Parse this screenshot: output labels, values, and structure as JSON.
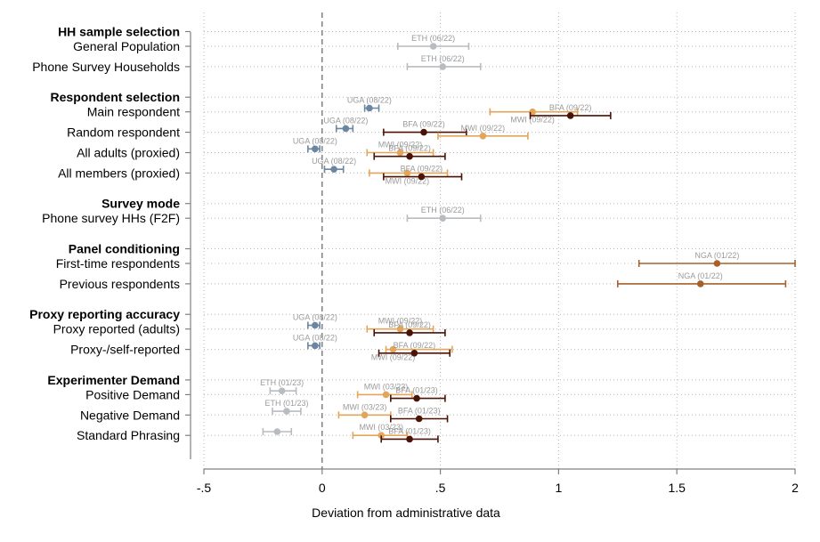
{
  "chart_data": {
    "type": "scatter",
    "subtype": "coefficient-plot-with-ci",
    "title": "",
    "xlabel": "Deviation from administrative data",
    "ylabel": "",
    "xlim": [
      -0.5,
      2
    ],
    "x_ticks": [
      {
        "value": -0.5,
        "label": "-.5"
      },
      {
        "value": 0,
        "label": "0"
      },
      {
        "value": 0.5,
        "label": ".5"
      },
      {
        "value": 1,
        "label": "1"
      },
      {
        "value": 1.5,
        "label": "1.5"
      },
      {
        "value": 2,
        "label": "2"
      }
    ],
    "reference_line": 0,
    "grid": true,
    "colors": {
      "ETH (06/22)": "#b8bcc0",
      "ETH (01/23)": "#b8bcc0",
      "UGA (08/22)": "#6b86a0",
      "BFA (09/22)": "#4a1306",
      "BFA (01/23)": "#4a1306",
      "MWI (09/22)": "#e3a55a",
      "MWI (03/23)": "#e3a55a",
      "NGA (01/22)": "#a8602a"
    },
    "sections": [
      {
        "title": "HH sample selection",
        "rows": [
          {
            "label": "General Population",
            "points": [
              {
                "series": "ETH (06/22)",
                "x": 0.47,
                "lo": 0.32,
                "hi": 0.62,
                "label_pos": "above"
              }
            ]
          },
          {
            "label": "Phone Survey Households",
            "points": [
              {
                "series": "ETH (06/22)",
                "x": 0.51,
                "lo": 0.36,
                "hi": 0.67,
                "label_pos": "above"
              }
            ]
          }
        ]
      },
      {
        "title": "Respondent selection",
        "rows": [
          {
            "label": "Main respondent",
            "points": [
              {
                "series": "UGA (08/22)",
                "x": 0.2,
                "lo": 0.18,
                "hi": 0.24,
                "label_pos": "above"
              },
              {
                "series": "MWI (09/22)",
                "x": 0.89,
                "lo": 0.71,
                "hi": 1.08,
                "label_pos": "below"
              },
              {
                "series": "BFA (09/22)",
                "x": 1.05,
                "lo": 0.88,
                "hi": 1.22,
                "label_pos": "above"
              }
            ]
          },
          {
            "label": "Random respondent",
            "points": [
              {
                "series": "UGA (08/22)",
                "x": 0.1,
                "lo": 0.06,
                "hi": 0.13,
                "label_pos": "above"
              },
              {
                "series": "BFA (09/22)",
                "x": 0.43,
                "lo": 0.26,
                "hi": 0.61,
                "label_pos": "above"
              },
              {
                "series": "MWI (09/22)",
                "x": 0.68,
                "lo": 0.49,
                "hi": 0.87,
                "label_pos": "above"
              }
            ]
          },
          {
            "label": "All adults (proxied)",
            "points": [
              {
                "series": "UGA (08/22)",
                "x": -0.03,
                "lo": -0.06,
                "hi": -0.01,
                "label_pos": "above"
              },
              {
                "series": "MWI (09/22)",
                "x": 0.33,
                "lo": 0.19,
                "hi": 0.47,
                "label_pos": "above"
              },
              {
                "series": "BFA (09/22)",
                "x": 0.37,
                "lo": 0.22,
                "hi": 0.52,
                "label_pos": "above"
              }
            ]
          },
          {
            "label": "All members (proxied)",
            "points": [
              {
                "series": "UGA (08/22)",
                "x": 0.05,
                "lo": 0.01,
                "hi": 0.09,
                "label_pos": "above"
              },
              {
                "series": "MWI (09/22)",
                "x": 0.36,
                "lo": 0.2,
                "hi": 0.53,
                "label_pos": "below"
              },
              {
                "series": "BFA (09/22)",
                "x": 0.42,
                "lo": 0.26,
                "hi": 0.59,
                "label_pos": "above"
              }
            ]
          }
        ]
      },
      {
        "title": "Survey mode",
        "rows": [
          {
            "label": "Phone survey HHs (F2F)",
            "points": [
              {
                "series": "ETH (06/22)",
                "x": 0.51,
                "lo": 0.36,
                "hi": 0.67,
                "label_pos": "above"
              }
            ]
          }
        ]
      },
      {
        "title": "Panel conditioning",
        "rows": [
          {
            "label": "First-time respondents",
            "points": [
              {
                "series": "NGA (01/22)",
                "x": 1.67,
                "lo": 1.34,
                "hi": 2.0,
                "label_pos": "above"
              }
            ]
          },
          {
            "label": "Previous respondents",
            "points": [
              {
                "series": "NGA (01/22)",
                "x": 1.6,
                "lo": 1.25,
                "hi": 1.96,
                "label_pos": "above"
              }
            ]
          }
        ]
      },
      {
        "title": "Proxy reporting accuracy",
        "rows": [
          {
            "label": "Proxy reported (adults)",
            "points": [
              {
                "series": "UGA (08/22)",
                "x": -0.03,
                "lo": -0.06,
                "hi": -0.01,
                "label_pos": "above"
              },
              {
                "series": "MWI (09/22)",
                "x": 0.33,
                "lo": 0.19,
                "hi": 0.47,
                "label_pos": "above"
              },
              {
                "series": "BFA (09/22)",
                "x": 0.37,
                "lo": 0.22,
                "hi": 0.52,
                "label_pos": "above"
              }
            ]
          },
          {
            "label": "Proxy-/self-reported",
            "points": [
              {
                "series": "UGA (08/22)",
                "x": -0.03,
                "lo": -0.06,
                "hi": -0.01,
                "label_pos": "above"
              },
              {
                "series": "MWI (09/22)",
                "x": 0.3,
                "lo": 0.27,
                "hi": 0.55,
                "label_pos": "below"
              },
              {
                "series": "BFA (09/22)",
                "x": 0.39,
                "lo": 0.24,
                "hi": 0.54,
                "label_pos": "above"
              }
            ]
          }
        ]
      },
      {
        "title": "Experimenter Demand",
        "rows": [
          {
            "label": "Positive Demand",
            "points": [
              {
                "series": "ETH (01/23)",
                "x": -0.17,
                "lo": -0.22,
                "hi": -0.11,
                "label_pos": "above"
              },
              {
                "series": "MWI (03/23)",
                "x": 0.27,
                "lo": 0.15,
                "hi": 0.38,
                "label_pos": "above"
              },
              {
                "series": "BFA (01/23)",
                "x": 0.4,
                "lo": 0.29,
                "hi": 0.52,
                "label_pos": "above"
              }
            ]
          },
          {
            "label": "Negative Demand",
            "points": [
              {
                "series": "ETH (01/23)",
                "x": -0.15,
                "lo": -0.21,
                "hi": -0.09,
                "label_pos": "above"
              },
              {
                "series": "MWI (03/23)",
                "x": 0.18,
                "lo": 0.07,
                "hi": 0.29,
                "label_pos": "above"
              },
              {
                "series": "BFA (01/23)",
                "x": 0.41,
                "lo": 0.29,
                "hi": 0.53,
                "label_pos": "above"
              }
            ]
          },
          {
            "label": "Standard Phrasing",
            "points": [
              {
                "series": "ETH (01/23)",
                "x": -0.19,
                "lo": -0.25,
                "hi": -0.13,
                "label_pos": "none"
              },
              {
                "series": "MWI (03/23)",
                "x": 0.25,
                "lo": 0.13,
                "hi": 0.36,
                "label_pos": "above"
              },
              {
                "series": "BFA (01/23)",
                "x": 0.37,
                "lo": 0.25,
                "hi": 0.49,
                "label_pos": "above"
              }
            ]
          }
        ]
      }
    ]
  }
}
